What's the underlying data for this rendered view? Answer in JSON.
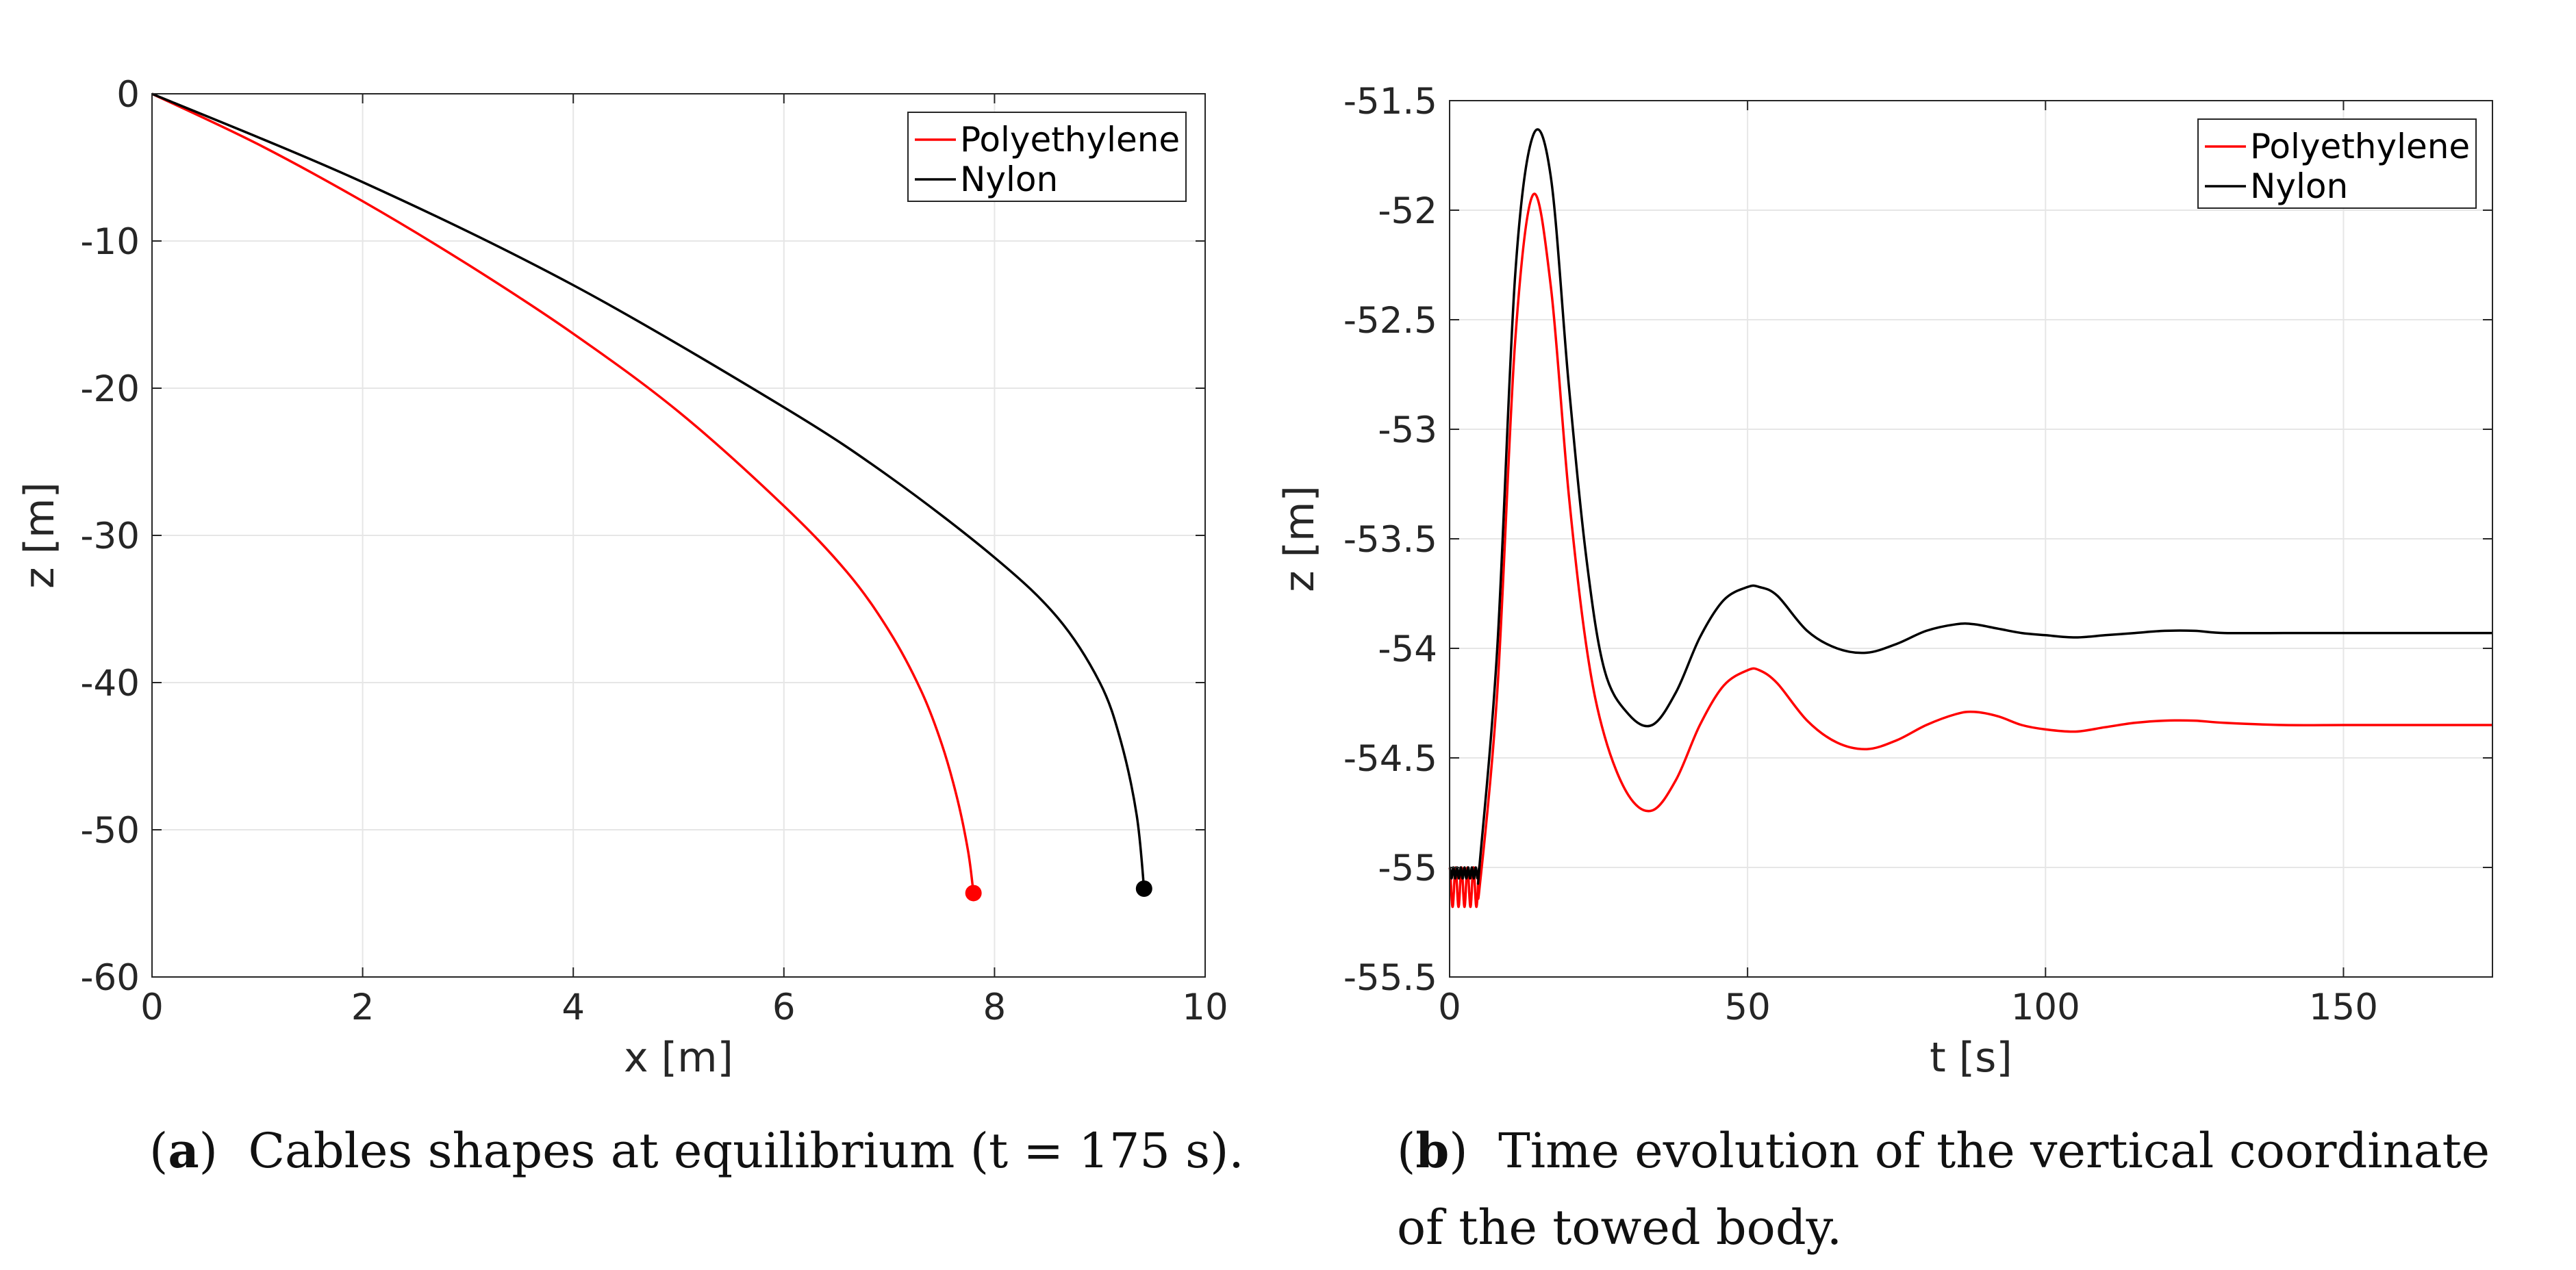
{
  "chart_data": [
    {
      "type": "line",
      "panel": "a",
      "xlabel": "x [m]",
      "ylabel": "z [m]",
      "xlim": [
        0,
        10
      ],
      "ylim": [
        -60,
        0
      ],
      "xticks": [
        "0",
        "2",
        "4",
        "6",
        "8",
        "10"
      ],
      "yticks": [
        "0",
        "-10",
        "-20",
        "-30",
        "-40",
        "-50",
        "-60"
      ],
      "grid": true,
      "legend_position": "top-right",
      "series": [
        {
          "name": "Polyethylene",
          "color": "#ff0000",
          "x": [
            0,
            1,
            2,
            3,
            4,
            5,
            6,
            6.6,
            7.0,
            7.3,
            7.5,
            7.65,
            7.75,
            7.8
          ],
          "y": [
            0,
            -3.4,
            -7.3,
            -11.6,
            -16.3,
            -21.6,
            -28.0,
            -32.5,
            -36.5,
            -40.5,
            -44.2,
            -48.0,
            -51.5,
            -54.3
          ],
          "end_marker": {
            "x": 7.8,
            "y": -54.3
          }
        },
        {
          "name": "Nylon",
          "color": "#000000",
          "x": [
            0,
            2,
            4,
            6,
            7,
            8,
            8.6,
            9.0,
            9.2,
            9.35,
            9.42
          ],
          "y": [
            0,
            -6.0,
            -13.0,
            -21.3,
            -26.0,
            -31.5,
            -35.6,
            -40.0,
            -44.0,
            -49.0,
            -54.0
          ],
          "end_marker": {
            "x": 9.42,
            "y": -54.0
          }
        }
      ]
    },
    {
      "type": "line",
      "panel": "b",
      "xlabel": "t [s]",
      "ylabel": "z [m]",
      "xlim": [
        0,
        175
      ],
      "ylim": [
        -55.5,
        -51.5
      ],
      "xticks": [
        "0",
        "50",
        "100",
        "150"
      ],
      "yticks": [
        "-51.5",
        "-52",
        "-52.5",
        "-53",
        "-53.5",
        "-54",
        "-54.5",
        "-55",
        "-55.5"
      ],
      "grid": true,
      "legend_position": "top-right",
      "series": [
        {
          "name": "Polyethylene",
          "color": "#ff0000",
          "initial_oscillation": {
            "t_start": 0,
            "t_end": 5,
            "base": -55.0,
            "low": -55.18,
            "cycles": 5
          },
          "t": [
            5,
            8,
            11,
            14,
            17,
            20,
            23,
            26,
            30,
            34,
            38,
            42,
            46,
            50,
            52,
            55,
            60,
            65,
            70,
            75,
            80,
            85,
            88,
            92,
            96,
            100,
            105,
            110,
            115,
            120,
            125,
            130,
            140,
            150,
            160,
            175
          ],
          "z": [
            -55.1,
            -54.2,
            -52.6,
            -51.93,
            -52.35,
            -53.3,
            -54.0,
            -54.4,
            -54.67,
            -54.74,
            -54.6,
            -54.35,
            -54.17,
            -54.1,
            -54.1,
            -54.16,
            -54.33,
            -54.43,
            -54.46,
            -54.42,
            -54.35,
            -54.3,
            -54.29,
            -54.31,
            -54.35,
            -54.37,
            -54.38,
            -54.36,
            -54.34,
            -54.33,
            -54.33,
            -54.34,
            -54.35,
            -54.35,
            -54.35,
            -54.35
          ]
        },
        {
          "name": "Nylon",
          "color": "#000000",
          "initial_oscillation": {
            "t_start": 0,
            "t_end": 5,
            "base": -55.0,
            "low": -55.05,
            "cycles": 8
          },
          "t": [
            5,
            8,
            11,
            14,
            17,
            20,
            23,
            26,
            30,
            34,
            38,
            42,
            46,
            50,
            52,
            55,
            60,
            65,
            70,
            75,
            80,
            85,
            88,
            92,
            96,
            100,
            105,
            110,
            115,
            120,
            125,
            130,
            140,
            150,
            160,
            175
          ],
          "z": [
            -55.0,
            -54.0,
            -52.3,
            -51.66,
            -51.85,
            -52.8,
            -53.6,
            -54.1,
            -54.3,
            -54.35,
            -54.2,
            -53.95,
            -53.78,
            -53.72,
            -53.72,
            -53.76,
            -53.92,
            -54.0,
            -54.02,
            -53.98,
            -53.92,
            -53.89,
            -53.89,
            -53.91,
            -53.93,
            -53.94,
            -53.95,
            -53.94,
            -53.93,
            -53.92,
            -53.92,
            -53.93,
            -53.93,
            -53.93,
            -53.93,
            -53.93
          ]
        }
      ]
    }
  ],
  "captions": {
    "a": {
      "label": "a",
      "text": "Cables shapes at equilibrium (t = 175 s)."
    },
    "b": {
      "label": "b",
      "line1": "Time evolution of the vertical coordinate",
      "line2": "of the towed body."
    }
  }
}
